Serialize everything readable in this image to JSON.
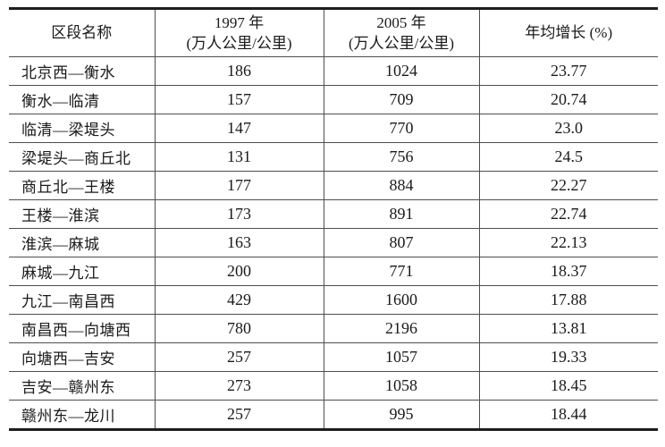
{
  "page": {
    "background": "#ffffff",
    "text_color": "#1a1a1a",
    "thick_rule_color": "#1d1d1d",
    "thin_rule_color": "#4e4e4e"
  },
  "table": {
    "header": {
      "col1": "区段名称",
      "col2_line1": "1997 年",
      "col2_line2": "(万人公里/公里)",
      "col3_line1": "2005 年",
      "col3_line2": "(万人公里/公里)",
      "col4": "年均增长 (%)"
    },
    "rows": [
      {
        "name": "北京西—衡水",
        "y1997": "186",
        "y2005": "1024",
        "growth": "23.77"
      },
      {
        "name": "衡水—临清",
        "y1997": "157",
        "y2005": "709",
        "growth": "20.74"
      },
      {
        "name": "临清—梁堤头",
        "y1997": "147",
        "y2005": "770",
        "growth": "23.0"
      },
      {
        "name": "梁堤头—商丘北",
        "y1997": "131",
        "y2005": "756",
        "growth": "24.5"
      },
      {
        "name": "商丘北—王楼",
        "y1997": "177",
        "y2005": "884",
        "growth": "22.27"
      },
      {
        "name": "王楼—淮滨",
        "y1997": "173",
        "y2005": "891",
        "growth": "22.74"
      },
      {
        "name": "淮滨—麻城",
        "y1997": "163",
        "y2005": "807",
        "growth": "22.13"
      },
      {
        "name": "麻城—九江",
        "y1997": "200",
        "y2005": "771",
        "growth": "18.37"
      },
      {
        "name": "九江—南昌西",
        "y1997": "429",
        "y2005": "1600",
        "growth": "17.88"
      },
      {
        "name": "南昌西—向塘西",
        "y1997": "780",
        "y2005": "2196",
        "growth": "13.81"
      },
      {
        "name": "向塘西—吉安",
        "y1997": "257",
        "y2005": "1057",
        "growth": "19.33"
      },
      {
        "name": "吉安—赣州东",
        "y1997": "273",
        "y2005": "1058",
        "growth": "18.45"
      },
      {
        "name": "赣州东—龙川",
        "y1997": "257",
        "y2005": "995",
        "growth": "18.44"
      }
    ]
  },
  "chart_data": {
    "type": "table",
    "title": "",
    "columns": [
      "区段名称",
      "1997 年 (万人公里/公里)",
      "2005 年 (万人公里/公里)",
      "年均增长 (%)"
    ],
    "rows": [
      [
        "北京西—衡水",
        186,
        1024,
        23.77
      ],
      [
        "衡水—临清",
        157,
        709,
        20.74
      ],
      [
        "临清—梁堤头",
        147,
        770,
        23.0
      ],
      [
        "梁堤头—商丘北",
        131,
        756,
        24.5
      ],
      [
        "商丘北—王楼",
        177,
        884,
        22.27
      ],
      [
        "王楼—淮滨",
        173,
        891,
        22.74
      ],
      [
        "淮滨—麻城",
        163,
        807,
        22.13
      ],
      [
        "麻城—九江",
        200,
        771,
        18.37
      ],
      [
        "九江—南昌西",
        429,
        1600,
        17.88
      ],
      [
        "南昌西—向塘西",
        780,
        2196,
        13.81
      ],
      [
        "向塘西—吉安",
        257,
        1057,
        19.33
      ],
      [
        "吉安—赣州东",
        273,
        1058,
        18.45
      ],
      [
        "赣州东—龙川",
        257,
        995,
        18.44
      ]
    ]
  }
}
